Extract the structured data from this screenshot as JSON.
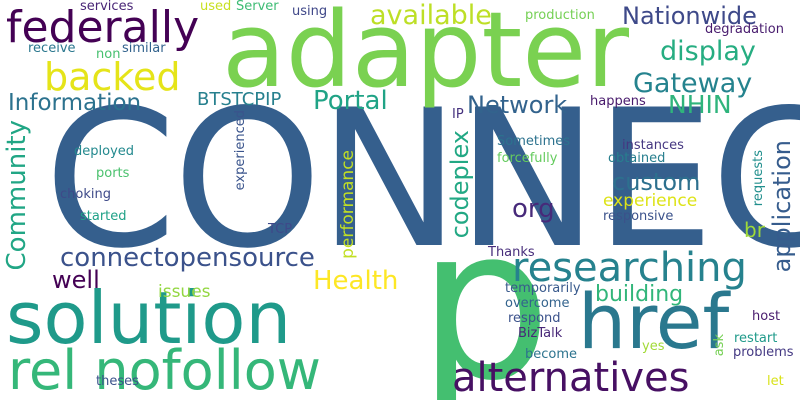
{
  "words": [
    {
      "text": "CONNECT",
      "color": "#355f8d",
      "vertical": false
    },
    {
      "text": "adapter",
      "color": "#7ad151",
      "vertical": false
    },
    {
      "text": "p",
      "color": "#44bf70",
      "vertical": false
    },
    {
      "text": "solution",
      "color": "#1f9a8a",
      "vertical": false
    },
    {
      "text": "href",
      "color": "#2a788e",
      "vertical": false
    },
    {
      "text": "rel nofollow",
      "color": "#35b779",
      "vertical": false
    },
    {
      "text": "alternatives",
      "color": "#471063",
      "vertical": false
    },
    {
      "text": "federally",
      "color": "#440154",
      "vertical": false
    },
    {
      "text": "researching",
      "color": "#26828e",
      "vertical": false
    },
    {
      "text": "backed",
      "color": "#e5e419",
      "vertical": false
    },
    {
      "text": "connectopensource",
      "color": "#3b528b",
      "vertical": false
    },
    {
      "text": "Community",
      "color": "#21a685",
      "vertical": true
    },
    {
      "text": "available",
      "color": "#bddf26",
      "vertical": false
    },
    {
      "text": "Gateway",
      "color": "#25838e",
      "vertical": false
    },
    {
      "text": "Nationwide",
      "color": "#3e4989",
      "vertical": false
    },
    {
      "text": "display",
      "color": "#26ad81",
      "vertical": false
    },
    {
      "text": "Information",
      "color": "#2c728e",
      "vertical": false
    },
    {
      "text": "Portal",
      "color": "#20a386",
      "vertical": false
    },
    {
      "text": "Network",
      "color": "#33638d",
      "vertical": false
    },
    {
      "text": "NHIN",
      "color": "#2fb47c",
      "vertical": false
    },
    {
      "text": "custom",
      "color": "#2d708e",
      "vertical": false
    },
    {
      "text": "org",
      "color": "#472a7a",
      "vertical": false
    },
    {
      "text": "Health",
      "color": "#fde725",
      "vertical": false
    },
    {
      "text": "well",
      "color": "#440154",
      "vertical": false
    },
    {
      "text": "building",
      "color": "#32b67a",
      "vertical": false
    },
    {
      "text": "codeplex",
      "color": "#22a884",
      "vertical": true
    },
    {
      "text": "application",
      "color": "#365c8d",
      "vertical": true
    },
    {
      "text": "experience",
      "color": "#dde318",
      "vertical": false
    },
    {
      "text": "br",
      "color": "#a0da39",
      "vertical": false
    },
    {
      "text": "BTSTCPIP",
      "color": "#27808e",
      "vertical": false
    },
    {
      "text": "performance",
      "color": "#c2df23",
      "vertical": true
    },
    {
      "text": "issues",
      "color": "#93d741",
      "vertical": false
    },
    {
      "text": "services",
      "color": "#482576",
      "vertical": false
    },
    {
      "text": "used",
      "color": "#c8e020",
      "vertical": false
    },
    {
      "text": "Server",
      "color": "#3dbc74",
      "vertical": false
    },
    {
      "text": "using",
      "color": "#3f4788",
      "vertical": false
    },
    {
      "text": "production",
      "color": "#75d054",
      "vertical": false
    },
    {
      "text": "degradation",
      "color": "#481c6e",
      "vertical": false
    },
    {
      "text": "receive",
      "color": "#2a778e",
      "vertical": false
    },
    {
      "text": "non",
      "color": "#46c06f",
      "vertical": false
    },
    {
      "text": "similar",
      "color": "#33638d",
      "vertical": false
    },
    {
      "text": "IP",
      "color": "#46327e",
      "vertical": false
    },
    {
      "text": "happens",
      "color": "#481a6c",
      "vertical": false
    },
    {
      "text": "Sometimes",
      "color": "#2c728e",
      "vertical": false
    },
    {
      "text": "instances",
      "color": "#453781",
      "vertical": false
    },
    {
      "text": "forcefully",
      "color": "#65cb5e",
      "vertical": false
    },
    {
      "text": "obtained",
      "color": "#277f8e",
      "vertical": false
    },
    {
      "text": "responsive",
      "color": "#3b528b",
      "vertical": false
    },
    {
      "text": "deployed",
      "color": "#23898e",
      "vertical": false
    },
    {
      "text": "ports",
      "color": "#4ac16d",
      "vertical": false
    },
    {
      "text": "choking",
      "color": "#3e4a89",
      "vertical": false
    },
    {
      "text": "started",
      "color": "#1fa187",
      "vertical": false
    },
    {
      "text": "experienced",
      "color": "#3a548c",
      "vertical": true
    },
    {
      "text": "requests",
      "color": "#218f8d",
      "vertical": true
    },
    {
      "text": "TCP",
      "color": "#3e4989",
      "vertical": false
    },
    {
      "text": "Thanks",
      "color": "#472d7b",
      "vertical": false
    },
    {
      "text": "temporarily",
      "color": "#38598c",
      "vertical": false
    },
    {
      "text": "overcome",
      "color": "#33638d",
      "vertical": false
    },
    {
      "text": "respond",
      "color": "#3b528b",
      "vertical": false
    },
    {
      "text": "BizTalk",
      "color": "#482878",
      "vertical": false
    },
    {
      "text": "become",
      "color": "#2c738e",
      "vertical": false
    },
    {
      "text": "yes",
      "color": "#a2da37",
      "vertical": false
    },
    {
      "text": "ask",
      "color": "#75d054",
      "vertical": true
    },
    {
      "text": "host",
      "color": "#481b6d",
      "vertical": false
    },
    {
      "text": "restart",
      "color": "#1f9a8a",
      "vertical": false
    },
    {
      "text": "problems",
      "color": "#443983",
      "vertical": false
    },
    {
      "text": "theses",
      "color": "#3b528b",
      "vertical": false
    },
    {
      "text": "let",
      "color": "#d8e219",
      "vertical": false
    }
  ]
}
